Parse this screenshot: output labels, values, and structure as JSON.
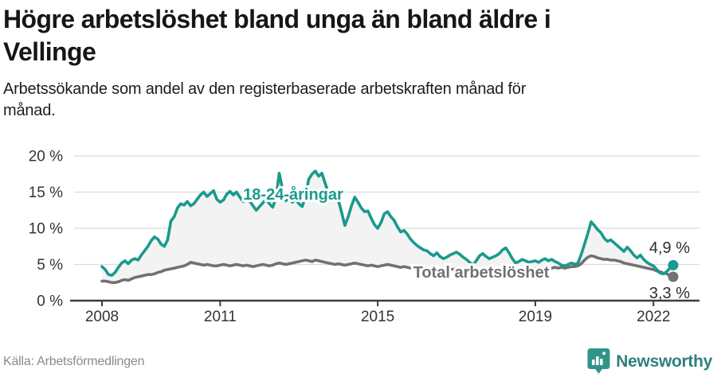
{
  "header": {
    "title_lines": [
      "Högre arbetslöshet bland unga än bland äldre i",
      "Vellinge"
    ],
    "subtitle_lines": [
      "Arbetssökande som andel av den registerbaserade arbetskraften månad för",
      "månad."
    ]
  },
  "footer": {
    "source": "Källa: Arbetsförmedlingen",
    "brand": "Newsworthy"
  },
  "colors": {
    "young_line": "#199a8c",
    "total_line": "#717171",
    "area_fill": "#f3f3f3",
    "grid": "#dcdcdc",
    "axis": "#3d3d3d",
    "tick_text": "#333333",
    "end_label_text": "#2e2e2e",
    "brand_teal_icon": "#31948a",
    "brand_teal_text": "#2c827b"
  },
  "chart_data": {
    "type": "line",
    "title": "Högre arbetslöshet bland unga än bland äldre i Vellinge",
    "subtitle": "Arbetssökande som andel av den registerbaserade arbetskraften månad för månad.",
    "unit": "%",
    "x_start": "2008-01",
    "x_end": "2022-07",
    "x_frequency": "monthly",
    "ylim": [
      0,
      20
    ],
    "grid": true,
    "y_ticks": [
      {
        "v": 0,
        "label": "0 %"
      },
      {
        "v": 5,
        "label": "5 %"
      },
      {
        "v": 10,
        "label": "10 %"
      },
      {
        "v": 15,
        "label": "15 %"
      },
      {
        "v": 20,
        "label": "20 %"
      }
    ],
    "x_ticks": [
      {
        "year": 2008,
        "label": "2008"
      },
      {
        "year": 2011,
        "label": "2011"
      },
      {
        "year": 2015,
        "label": "2015"
      },
      {
        "year": 2019,
        "label": "2019"
      },
      {
        "year": 2022,
        "label": "2022"
      }
    ],
    "series": [
      {
        "name": "18-24-åringar",
        "inline_label": "18-24-åringar",
        "end_label": "4,9 %",
        "last_value": 4.9,
        "values": [
          4.7,
          4.3,
          3.6,
          3.5,
          3.9,
          4.6,
          5.2,
          5.5,
          5.1,
          5.6,
          5.8,
          5.6,
          6.3,
          6.9,
          7.5,
          8.3,
          8.8,
          8.5,
          7.8,
          7.5,
          8.4,
          11.0,
          11.6,
          12.8,
          13.4,
          13.2,
          13.7,
          13.1,
          13.4,
          14.0,
          14.6,
          15.0,
          14.4,
          14.8,
          15.2,
          14.0,
          13.6,
          13.9,
          14.7,
          15.1,
          14.6,
          15.0,
          14.3,
          13.7,
          14.2,
          13.8,
          13.1,
          12.5,
          13.0,
          13.5,
          14.0,
          13.4,
          12.9,
          14.2,
          17.6,
          15.4,
          13.8,
          14.3,
          13.6,
          14.0,
          13.4,
          13.0,
          14.5,
          16.8,
          17.5,
          17.9,
          17.2,
          17.6,
          16.2,
          14.9,
          14.3,
          13.9,
          13.9,
          12.2,
          10.4,
          11.6,
          13.1,
          14.3,
          13.6,
          12.8,
          12.3,
          12.4,
          11.4,
          10.5,
          10.0,
          10.8,
          12.0,
          12.3,
          11.6,
          11.1,
          10.2,
          9.5,
          9.7,
          9.2,
          8.5,
          8.0,
          7.6,
          7.3,
          7.0,
          6.9,
          6.5,
          6.2,
          6.6,
          6.1,
          5.8,
          6.0,
          6.3,
          6.5,
          6.7,
          6.4,
          6.0,
          5.7,
          5.3,
          4.9,
          5.5,
          6.2,
          6.5,
          6.1,
          5.8,
          6.0,
          6.2,
          6.5,
          7.0,
          7.3,
          6.6,
          5.8,
          5.2,
          5.4,
          5.7,
          5.5,
          5.3,
          5.4,
          5.5,
          5.3,
          5.6,
          5.8,
          5.5,
          5.7,
          5.4,
          5.2,
          4.9,
          4.8,
          5.0,
          5.2,
          5.0,
          5.2,
          6.4,
          7.8,
          9.3,
          10.9,
          10.4,
          9.8,
          9.4,
          8.6,
          8.2,
          8.4,
          8.0,
          7.6,
          7.2,
          6.8,
          7.4,
          6.9,
          6.3,
          5.9,
          6.3,
          5.7,
          5.3,
          5.0,
          4.8,
          4.3,
          3.8,
          3.7,
          4.0,
          4.5,
          4.9
        ]
      },
      {
        "name": "Total arbetslöshet",
        "inline_label": "Total arbetslöshet",
        "end_label": "3,3 %",
        "last_value": 3.3,
        "values": [
          2.7,
          2.7,
          2.6,
          2.5,
          2.5,
          2.6,
          2.8,
          2.9,
          2.8,
          3.0,
          3.2,
          3.3,
          3.4,
          3.5,
          3.6,
          3.6,
          3.7,
          3.9,
          4.0,
          4.2,
          4.3,
          4.4,
          4.5,
          4.6,
          4.7,
          4.8,
          5.0,
          5.3,
          5.2,
          5.1,
          5.0,
          4.9,
          5.0,
          4.9,
          4.8,
          4.8,
          4.9,
          5.0,
          4.9,
          4.8,
          4.9,
          5.0,
          4.9,
          4.8,
          4.9,
          4.8,
          4.7,
          4.8,
          4.9,
          5.0,
          4.9,
          4.8,
          4.9,
          5.1,
          5.2,
          5.1,
          5.0,
          5.1,
          5.2,
          5.3,
          5.4,
          5.5,
          5.6,
          5.5,
          5.4,
          5.6,
          5.5,
          5.4,
          5.3,
          5.2,
          5.1,
          5.0,
          5.1,
          5.0,
          4.9,
          5.0,
          5.1,
          5.2,
          5.1,
          5.0,
          4.9,
          4.8,
          4.9,
          4.8,
          4.7,
          4.8,
          4.9,
          5.0,
          4.9,
          4.8,
          4.7,
          4.6,
          4.7,
          4.6,
          4.5,
          4.5,
          4.6,
          4.5,
          4.4,
          4.5,
          4.4,
          4.3,
          4.4,
          4.3,
          4.2,
          4.3,
          4.4,
          4.3,
          4.4,
          4.3,
          4.2,
          4.3,
          4.2,
          4.1,
          4.2,
          4.3,
          4.4,
          4.3,
          4.2,
          4.3,
          4.2,
          4.3,
          4.4,
          4.3,
          4.2,
          4.1,
          4.2,
          4.1,
          4.2,
          4.3,
          4.2,
          4.3,
          4.4,
          4.3,
          4.4,
          4.5,
          4.4,
          4.5,
          4.6,
          4.5,
          4.6,
          4.5,
          4.6,
          4.7,
          4.7,
          4.8,
          5.1,
          5.6,
          6.0,
          6.2,
          6.1,
          5.9,
          5.8,
          5.7,
          5.7,
          5.6,
          5.6,
          5.5,
          5.4,
          5.2,
          5.1,
          5.0,
          4.9,
          4.8,
          4.7,
          4.6,
          4.5,
          4.4,
          4.3,
          4.1,
          4.0,
          3.8,
          3.7,
          3.5,
          3.3
        ]
      }
    ]
  }
}
